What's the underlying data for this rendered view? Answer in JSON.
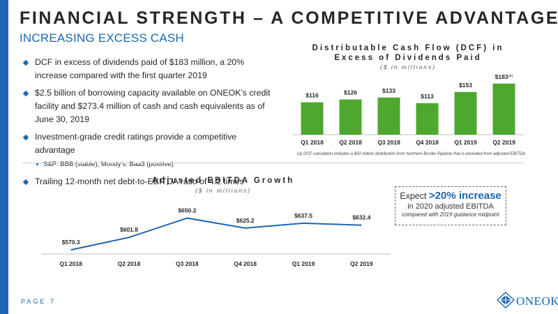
{
  "title": "FINANCIAL STRENGTH – A COMPETITIVE ADVANTAGE",
  "subtitle": "INCREASING EXCESS CASH",
  "bullets": [
    {
      "text": "DCF in excess of dividends paid of $183 million, a 20% increase compared with the first quarter 2019"
    },
    {
      "text": "$2.5 billion of borrowing capacity available on ONEOK’s credit facility and $273.4 million of cash and cash equivalents as of June 30, 2019"
    },
    {
      "text": "Investment-grade credit ratings provide a competitive advantage",
      "sub": "S&P: BBB (stable);  Moody’s: Baa3 (positive)"
    },
    {
      "text": "Trailing 12-month net debt-to-EBITDA ratio of 4.2 times"
    }
  ],
  "dcf_header": {
    "line1": "Distributable Cash Flow (DCF) in",
    "line2": "Excess of Dividends Paid",
    "units": "($ in millions)"
  },
  "dcf_footnote": "(a) DCF calculation includes a $50 million distribution from Northern Border Pipeline that is excluded from adjusted EBITDA.",
  "ebitda_header": {
    "title": "Adjusted EBITDA Growth",
    "units": "($ in millions)"
  },
  "callout": {
    "prefix": "Expect ",
    "highlight": ">20% increase",
    "line2": "in 2020 adjusted EBITDA",
    "line3": "compared with 2019 guidance midpoint"
  },
  "page_label": "PAGE 7",
  "logo_text": "ONEOK",
  "colors": {
    "brand_blue": "#1b66b1",
    "bar_green": "#4ea72e",
    "line_blue": "#1b66b1"
  },
  "chart_data": [
    {
      "type": "bar",
      "categories": [
        "Q1 2018",
        "Q2 2018",
        "Q3 2018",
        "Q4 2018",
        "Q1 2019",
        "Q2 2019"
      ],
      "values": [
        116,
        126,
        133,
        113,
        153,
        183
      ],
      "labels": [
        "$116",
        "$126",
        "$133",
        "$113",
        "$153",
        "$183"
      ],
      "label_notes": [
        "",
        "",
        "",
        "",
        "",
        "(a)"
      ],
      "title": "Distributable Cash Flow (DCF) in Excess of Dividends Paid",
      "ylabel": "",
      "ylim": [
        0,
        190
      ]
    },
    {
      "type": "line",
      "categories": [
        "Q1 2018",
        "Q2 2018",
        "Q3 2018",
        "Q4 2018",
        "Q1 2019",
        "Q2 2019"
      ],
      "values": [
        570.3,
        601.8,
        650.2,
        625.2,
        637.5,
        632.4
      ],
      "labels": [
        "$570.3",
        "$601.8",
        "$650.2",
        "$625.2",
        "$637.5",
        "$632.4"
      ],
      "title": "Adjusted EBITDA Growth",
      "ylabel": "",
      "ylim": [
        560,
        660
      ]
    }
  ]
}
